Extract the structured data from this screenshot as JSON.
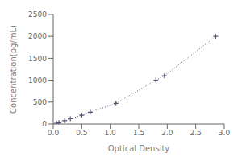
{
  "chart_data": {
    "type": "line",
    "x": [
      0.06,
      0.1,
      0.2,
      0.3,
      0.5,
      0.65,
      1.1,
      1.8,
      1.95,
      2.85
    ],
    "values": [
      15,
      30,
      75,
      120,
      200,
      270,
      470,
      1000,
      1100,
      2000
    ],
    "xlabel": "Optical Density",
    "ylabel": "Concentration(pg/mL)",
    "xlim": [
      0,
      3
    ],
    "ylim": [
      0,
      2500
    ],
    "xticks": [
      {
        "value": 0,
        "label": "0.0"
      },
      {
        "value": 0.5,
        "label": "0.5"
      },
      {
        "value": 1,
        "label": "1.0"
      },
      {
        "value": 1.5,
        "label": "1.5"
      },
      {
        "value": 2,
        "label": "2.0"
      },
      {
        "value": 2.5,
        "label": "2.5"
      },
      {
        "value": 3,
        "label": "3.0"
      }
    ],
    "yticks": [
      0,
      500,
      1000,
      1500,
      2000,
      2500
    ],
    "color": "#555577",
    "marker": "+",
    "line_style": "dotted"
  }
}
